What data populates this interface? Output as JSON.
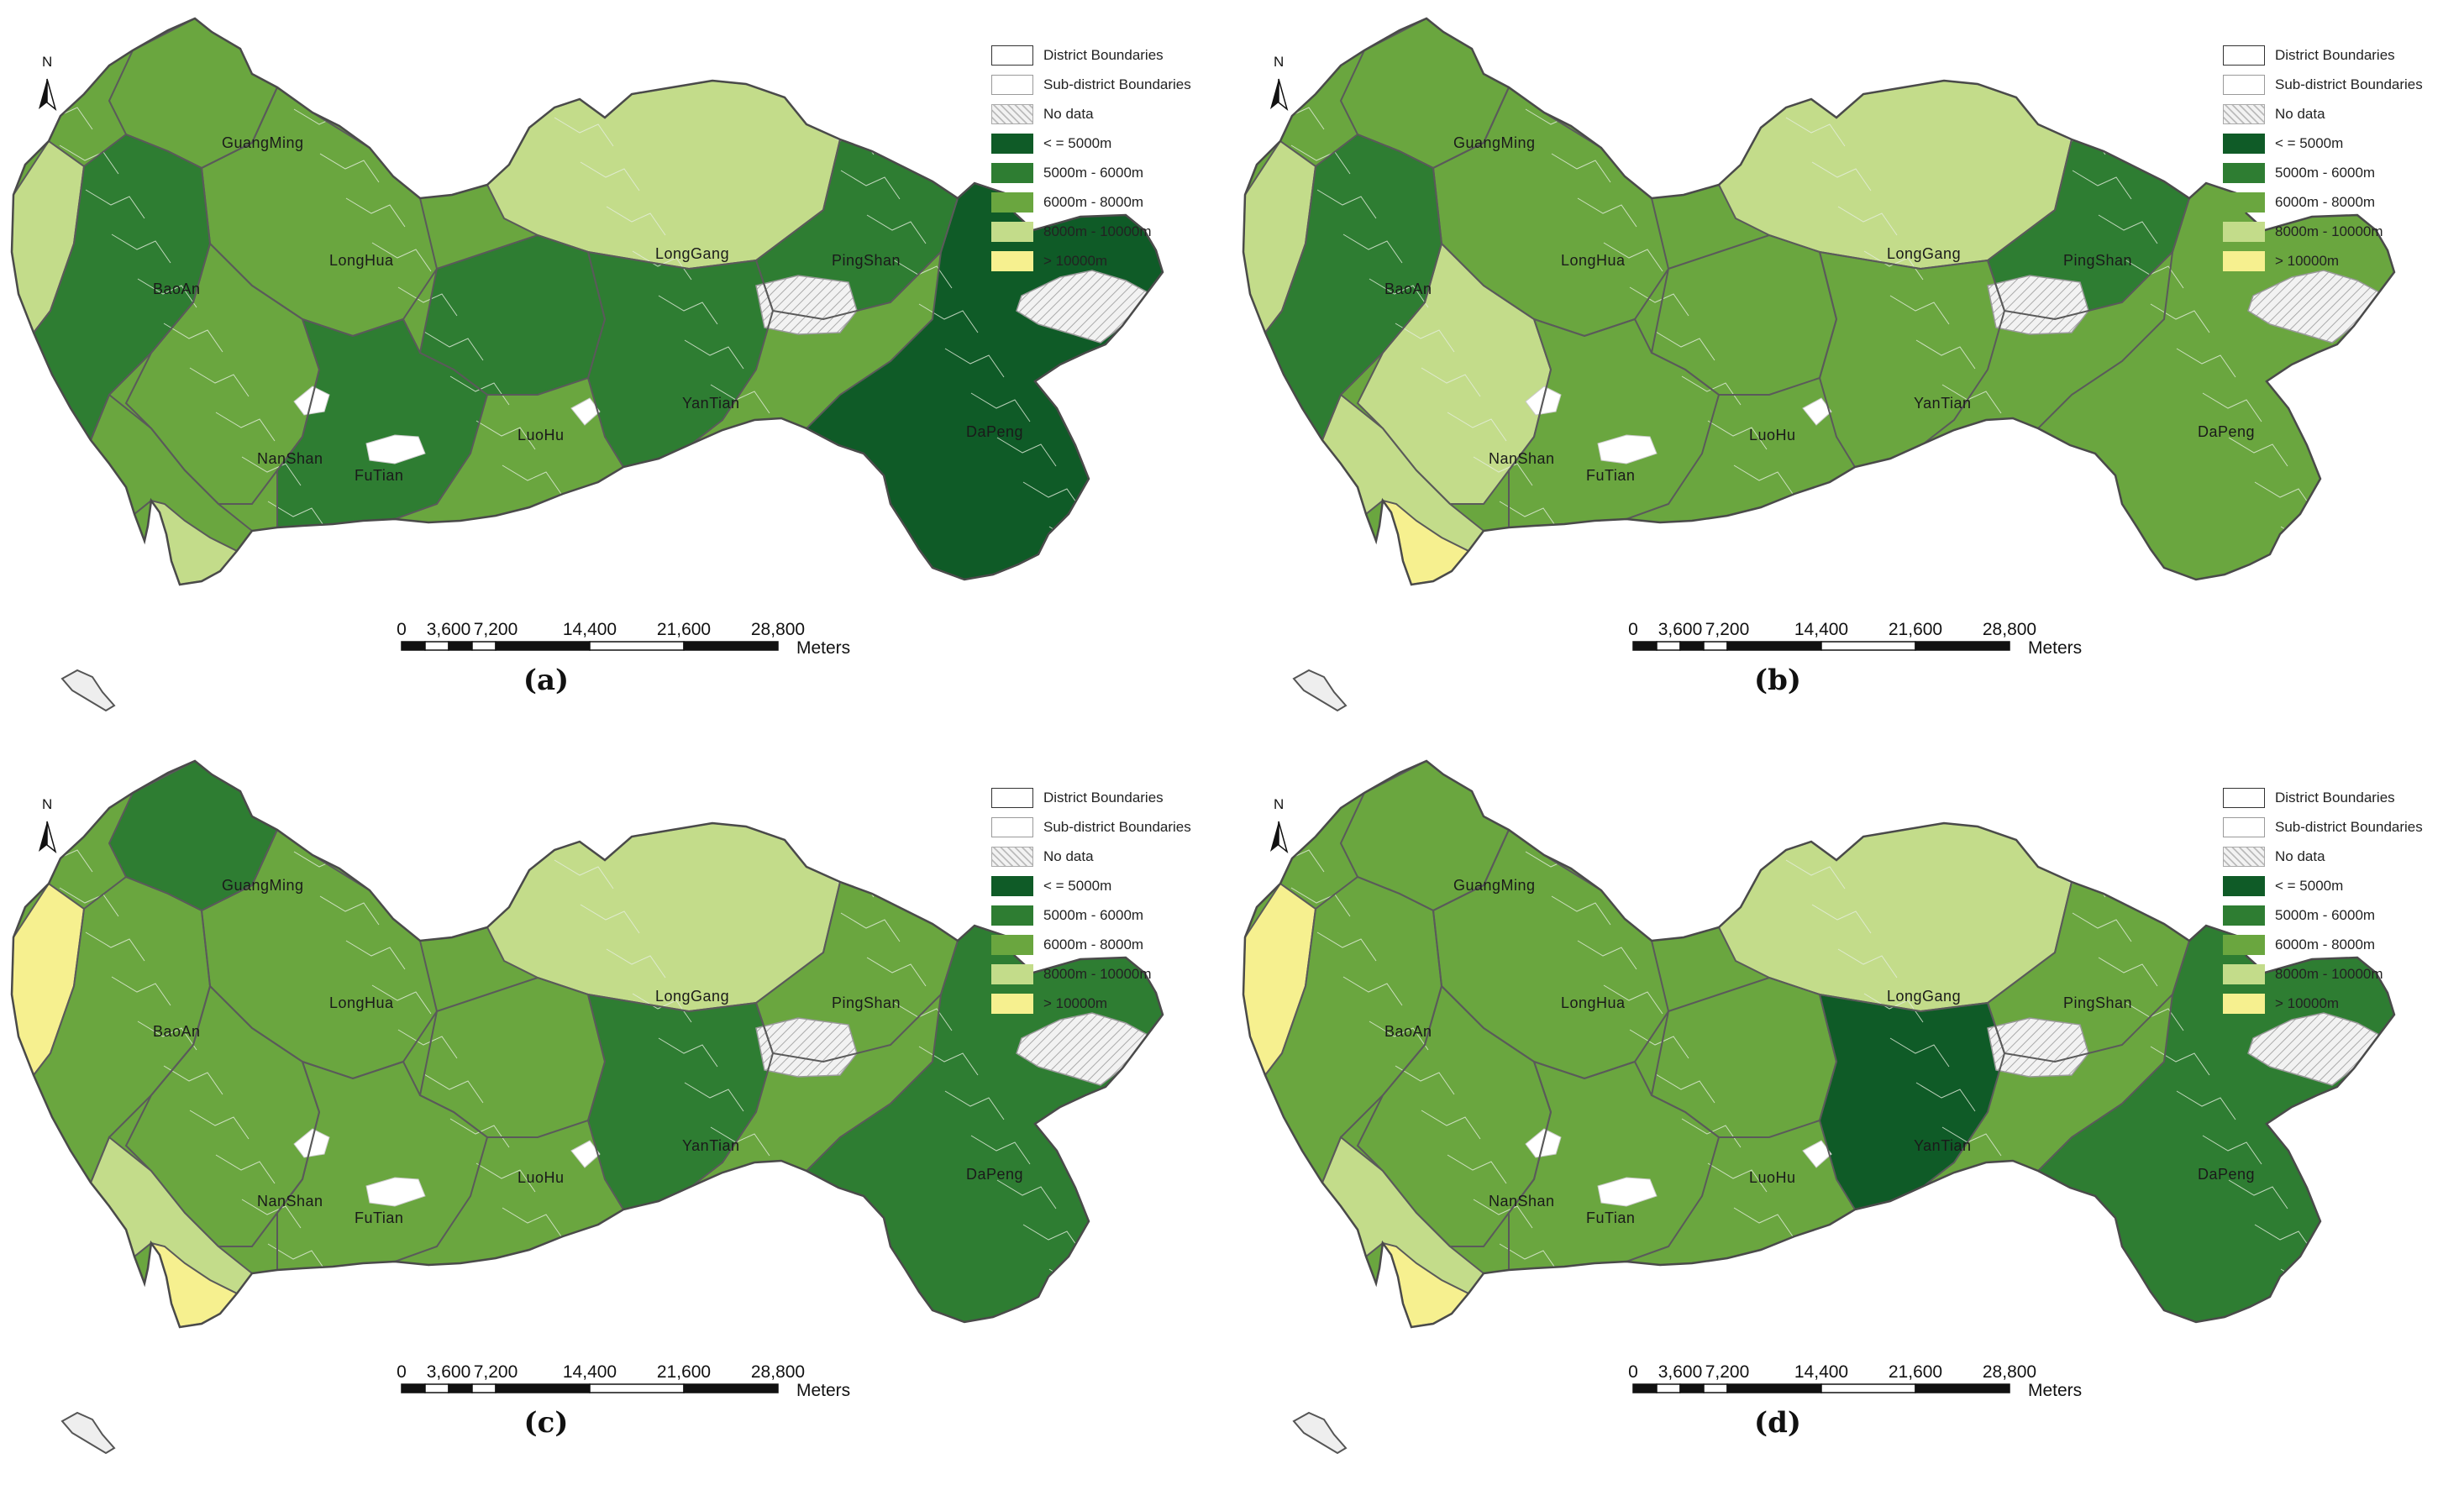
{
  "legend": {
    "items": [
      {
        "label": "District Boundaries",
        "kind": "district",
        "fill": "#ffffff",
        "stroke": "#333333"
      },
      {
        "label": "Sub-district Boundaries",
        "kind": "subdistrict",
        "fill": "#ffffff",
        "stroke": "#9a9a9a"
      },
      {
        "label": "No data",
        "kind": "nodata",
        "fill": "#eeeeee",
        "stroke": "#aaaaaa"
      },
      {
        "label": "< = 5000m",
        "kind": "class1",
        "fill": "#0f5b27",
        "stroke": "#0f5b27"
      },
      {
        "label": "5000m - 6000m",
        "kind": "class2",
        "fill": "#2e7d32",
        "stroke": "#2e7d32"
      },
      {
        "label": "6000m - 8000m",
        "kind": "class3",
        "fill": "#6aa63f",
        "stroke": "#6aa63f"
      },
      {
        "label": "8000m - 10000m",
        "kind": "class4",
        "fill": "#c3dc8a",
        "stroke": "#c3dc8a"
      },
      {
        "label": "> 10000m",
        "kind": "class5",
        "fill": "#f6f08f",
        "stroke": "#f6f08f"
      }
    ]
  },
  "districts": [
    {
      "key": "guangming",
      "name": "GuangMing"
    },
    {
      "key": "baoan",
      "name": "BaoAn"
    },
    {
      "key": "longhua",
      "name": "LongHua"
    },
    {
      "key": "longgang",
      "name": "LongGang"
    },
    {
      "key": "pingshan",
      "name": "PingShan"
    },
    {
      "key": "yantian",
      "name": "YanTian"
    },
    {
      "key": "luohu",
      "name": "LuoHu"
    },
    {
      "key": "nanshan",
      "name": "NanShan"
    },
    {
      "key": "futian",
      "name": "FuTian"
    },
    {
      "key": "dapeng",
      "name": "DaPeng"
    }
  ],
  "north_arrow": "N",
  "north_icon": "north-arrow-icon",
  "scale_bar": {
    "ticks": [
      "0",
      "3,600",
      "7,200",
      "14,400",
      "21,600",
      "28,800"
    ],
    "unit": "Meters"
  },
  "palette_order": [
    "#0f5b27",
    "#2e7d32",
    "#6aa63f",
    "#c3dc8a",
    "#f6f08f"
  ],
  "panels": [
    {
      "label": "(a)",
      "classes": {
        "guangming": 3,
        "baoan": 2,
        "longhua": 3,
        "longgang": 4,
        "pingshan": 2,
        "yantian": 2,
        "luohu": 2,
        "nanshan": 3,
        "futian": 2,
        "dapeng": 1,
        "west_strip": 4,
        "south_tip": 4,
        "coast": 3
      }
    },
    {
      "label": "(b)",
      "classes": {
        "guangming": 3,
        "baoan": 2,
        "longhua": 3,
        "longgang": 4,
        "pingshan": 2,
        "yantian": 3,
        "luohu": 3,
        "nanshan": 4,
        "futian": 3,
        "dapeng": 3,
        "west_strip": 4,
        "south_tip": 5,
        "coast": 4
      }
    },
    {
      "label": "(c)",
      "classes": {
        "guangming": 2,
        "baoan": 3,
        "longhua": 3,
        "longgang": 4,
        "pingshan": 3,
        "yantian": 2,
        "luohu": 3,
        "nanshan": 3,
        "futian": 3,
        "dapeng": 2,
        "west_strip": 5,
        "south_tip": 5,
        "coast": 4
      }
    },
    {
      "label": "(d)",
      "classes": {
        "guangming": 3,
        "baoan": 3,
        "longhua": 3,
        "longgang": 4,
        "pingshan": 3,
        "yantian": 1,
        "luohu": 3,
        "nanshan": 3,
        "futian": 3,
        "dapeng": 2,
        "west_strip": 5,
        "south_tip": 5,
        "coast": 4
      }
    }
  ]
}
